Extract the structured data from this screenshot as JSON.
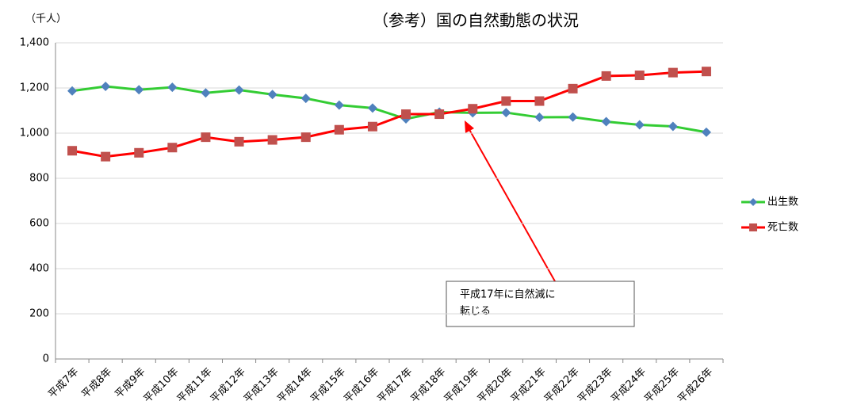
{
  "chart_data": {
    "type": "line",
    "title": "（参考）国の自然動態の状況",
    "unit_label": "（千人）",
    "categories": [
      "平成7年",
      "平成8年",
      "平成9年",
      "平成10年",
      "平成11年",
      "平成12年",
      "平成13年",
      "平成14年",
      "平成15年",
      "平成16年",
      "平成17年",
      "平成18年",
      "平成19年",
      "平成20年",
      "平成21年",
      "平成22年",
      "平成23年",
      "平成24年",
      "平成25年",
      "平成26年"
    ],
    "series": [
      {
        "name": "出生数",
        "color": "#33cc33",
        "marker_color": "#4f81bd",
        "marker": "diamond",
        "values": [
          1187,
          1207,
          1192,
          1203,
          1178,
          1191,
          1171,
          1154,
          1124,
          1111,
          1063,
          1093,
          1090,
          1091,
          1070,
          1071,
          1051,
          1037,
          1030,
          1004
        ]
      },
      {
        "name": "死亡数",
        "color": "#ff0000",
        "marker_color": "#c0504d",
        "marker": "square",
        "values": [
          922,
          896,
          913,
          936,
          982,
          962,
          970,
          982,
          1015,
          1029,
          1084,
          1084,
          1108,
          1142,
          1142,
          1197,
          1253,
          1256,
          1268,
          1273
        ]
      }
    ],
    "ylim": [
      0,
      1400
    ],
    "yticks": [
      0,
      200,
      400,
      600,
      800,
      {
        "value": 1000,
        "label": "1,000"
      },
      {
        "value": 1200,
        "label": "1,200"
      },
      {
        "value": 1400,
        "label": "1,400"
      }
    ],
    "grid": true,
    "legend": "right",
    "annotation": {
      "lines": [
        "平成17年に自然減に",
        "転じる"
      ]
    }
  }
}
